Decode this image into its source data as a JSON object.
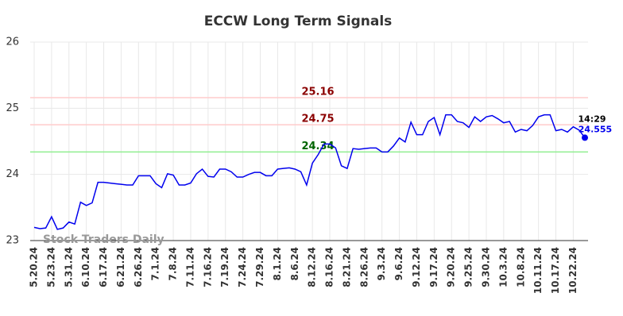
{
  "chart_data": {
    "type": "line",
    "title": "ECCW Long Term Signals",
    "categories": [
      "5.20.24",
      null,
      null,
      "5.23.24",
      null,
      null,
      "5.31.24",
      null,
      null,
      "6.10.24",
      null,
      null,
      "6.17.24",
      null,
      null,
      "6.21.24",
      null,
      null,
      "6.26.24",
      null,
      null,
      "7.1.24",
      null,
      null,
      "7.8.24",
      null,
      null,
      "7.11.24",
      null,
      null,
      "7.16.24",
      null,
      null,
      "7.19.24",
      null,
      null,
      "7.24.24",
      null,
      null,
      "7.29.24",
      null,
      null,
      "8.1.24",
      null,
      null,
      "8.6.24",
      null,
      null,
      "8.12.24",
      null,
      null,
      "8.16.24",
      null,
      null,
      "8.21.24",
      null,
      null,
      "8.26.24",
      null,
      null,
      "9.3.24",
      null,
      null,
      "9.6.24",
      null,
      null,
      "9.12.24",
      null,
      null,
      "9.17.24",
      null,
      null,
      "9.20.24",
      null,
      null,
      "9.25.24",
      null,
      null,
      "9.30.24",
      null,
      null,
      "10.3.24",
      null,
      null,
      "10.8.24",
      null,
      null,
      "10.11.24",
      null,
      null,
      "10.17.24",
      null,
      null,
      "10.22.24",
      null,
      null
    ],
    "values": [
      23.2,
      23.18,
      23.19,
      23.36,
      23.17,
      23.19,
      23.28,
      23.25,
      23.58,
      23.53,
      23.57,
      23.88,
      23.88,
      23.87,
      23.86,
      23.85,
      23.84,
      23.84,
      23.98,
      23.98,
      23.98,
      23.86,
      23.8,
      24.01,
      23.99,
      23.84,
      23.84,
      23.87,
      24.01,
      24.08,
      23.97,
      23.96,
      24.08,
      24.08,
      24.04,
      23.96,
      23.96,
      24.0,
      24.03,
      24.03,
      23.98,
      23.98,
      24.08,
      24.09,
      24.1,
      24.08,
      24.04,
      23.84,
      24.17,
      24.3,
      24.46,
      24.46,
      24.4,
      24.13,
      24.09,
      24.39,
      24.38,
      24.39,
      24.4,
      24.4,
      24.34,
      24.34,
      24.43,
      24.55,
      24.49,
      24.79,
      24.6,
      24.6,
      24.8,
      24.86,
      24.6,
      24.9,
      24.9,
      24.8,
      24.78,
      24.71,
      24.87,
      24.8,
      24.87,
      24.89,
      24.84,
      24.78,
      24.8,
      24.64,
      24.68,
      24.66,
      24.74,
      24.87,
      24.9,
      24.9,
      24.66,
      24.68,
      24.64,
      24.72,
      24.67,
      24.555
    ],
    "color": "#0000ee",
    "ylim": [
      23,
      26
    ],
    "yticks": [
      23,
      24,
      25,
      26
    ],
    "grid": true,
    "reference_lines": [
      {
        "value": 25.16,
        "line_color": "#ffcccc",
        "text_color": "#8b0000"
      },
      {
        "value": 24.75,
        "line_color": "#ffcccc",
        "text_color": "#8b0000"
      },
      {
        "value": 24.34,
        "line_color": "#90ee90",
        "text_color": "#006400"
      }
    ],
    "last_time": "14:29",
    "watermark": "Stock Traders Daily"
  }
}
